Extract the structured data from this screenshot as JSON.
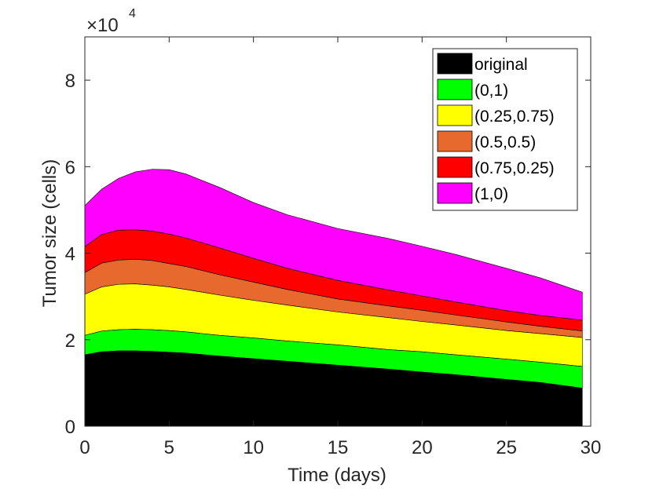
{
  "chart_data": {
    "type": "area",
    "stacked": true,
    "xlabel": "Time (days)",
    "ylabel": "Tumor size (cells)",
    "multiplier_label": "×10",
    "multiplier_exponent": "4",
    "xlim": [
      0,
      30
    ],
    "ylim": [
      0,
      9
    ],
    "y_scale_factor": 10000,
    "xticks": [
      0,
      5,
      10,
      15,
      20,
      25,
      30
    ],
    "yticks": [
      0,
      2,
      4,
      6,
      8
    ],
    "grid": false,
    "legend_position": "top-right",
    "x": [
      0,
      1,
      2,
      3,
      4,
      5,
      6,
      8,
      10,
      12,
      15,
      18,
      20,
      22,
      25,
      27,
      29.5
    ],
    "series": [
      {
        "name": "original",
        "color": "#000000",
        "cumulative_values": [
          1.65,
          1.72,
          1.74,
          1.74,
          1.73,
          1.71,
          1.69,
          1.62,
          1.56,
          1.5,
          1.41,
          1.32,
          1.25,
          1.19,
          1.08,
          1.01,
          0.88
        ]
      },
      {
        "name": "(0,1)",
        "color": "#00ff00",
        "cumulative_values": [
          2.1,
          2.2,
          2.23,
          2.24,
          2.23,
          2.21,
          2.18,
          2.1,
          2.04,
          1.97,
          1.88,
          1.77,
          1.72,
          1.65,
          1.55,
          1.48,
          1.38
        ]
      },
      {
        "name": "(0.25,0.75)",
        "color": "#ffff00",
        "cumulative_values": [
          3.05,
          3.22,
          3.28,
          3.29,
          3.26,
          3.22,
          3.16,
          3.03,
          2.91,
          2.8,
          2.64,
          2.51,
          2.42,
          2.34,
          2.21,
          2.14,
          2.05
        ]
      },
      {
        "name": "(0.5,0.5)",
        "color": "#e8692e",
        "cumulative_values": [
          3.55,
          3.77,
          3.84,
          3.86,
          3.83,
          3.76,
          3.69,
          3.5,
          3.33,
          3.16,
          2.94,
          2.78,
          2.68,
          2.57,
          2.41,
          2.31,
          2.2
        ]
      },
      {
        "name": "(0.75,0.25)",
        "color": "#ff0000",
        "cumulative_values": [
          4.15,
          4.43,
          4.53,
          4.54,
          4.51,
          4.44,
          4.35,
          4.12,
          3.88,
          3.65,
          3.37,
          3.15,
          3.01,
          2.87,
          2.67,
          2.56,
          2.45
        ]
      },
      {
        "name": "(1,0)",
        "color": "#ff00ff",
        "cumulative_values": [
          5.1,
          5.48,
          5.73,
          5.88,
          5.94,
          5.93,
          5.83,
          5.52,
          5.17,
          4.89,
          4.57,
          4.34,
          4.16,
          3.97,
          3.65,
          3.43,
          3.1
        ]
      }
    ]
  }
}
